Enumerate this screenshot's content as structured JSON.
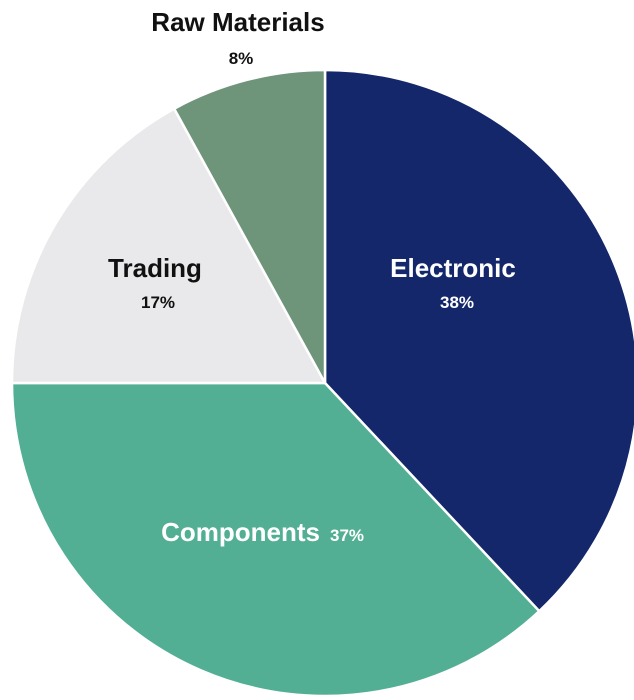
{
  "chart_data": {
    "type": "pie",
    "title": "",
    "slices": [
      {
        "label": "Electronic",
        "value": 38,
        "value_label": "38%",
        "color": "#14276b",
        "label_color": "#ffffff"
      },
      {
        "label": "Components",
        "value": 37,
        "value_label": "37%",
        "color": "#52af94",
        "label_color": "#ffffff"
      },
      {
        "label": "Trading",
        "value": 17,
        "value_label": "17%",
        "color": "#e9e8ea",
        "label_color": "#111111"
      },
      {
        "label": "Raw Materials",
        "value": 8,
        "value_label": "8%",
        "color": "#6e9479",
        "label_color": "#111111"
      }
    ],
    "start_angle": "12 o'clock",
    "direction": "clockwise",
    "legend": "none"
  }
}
